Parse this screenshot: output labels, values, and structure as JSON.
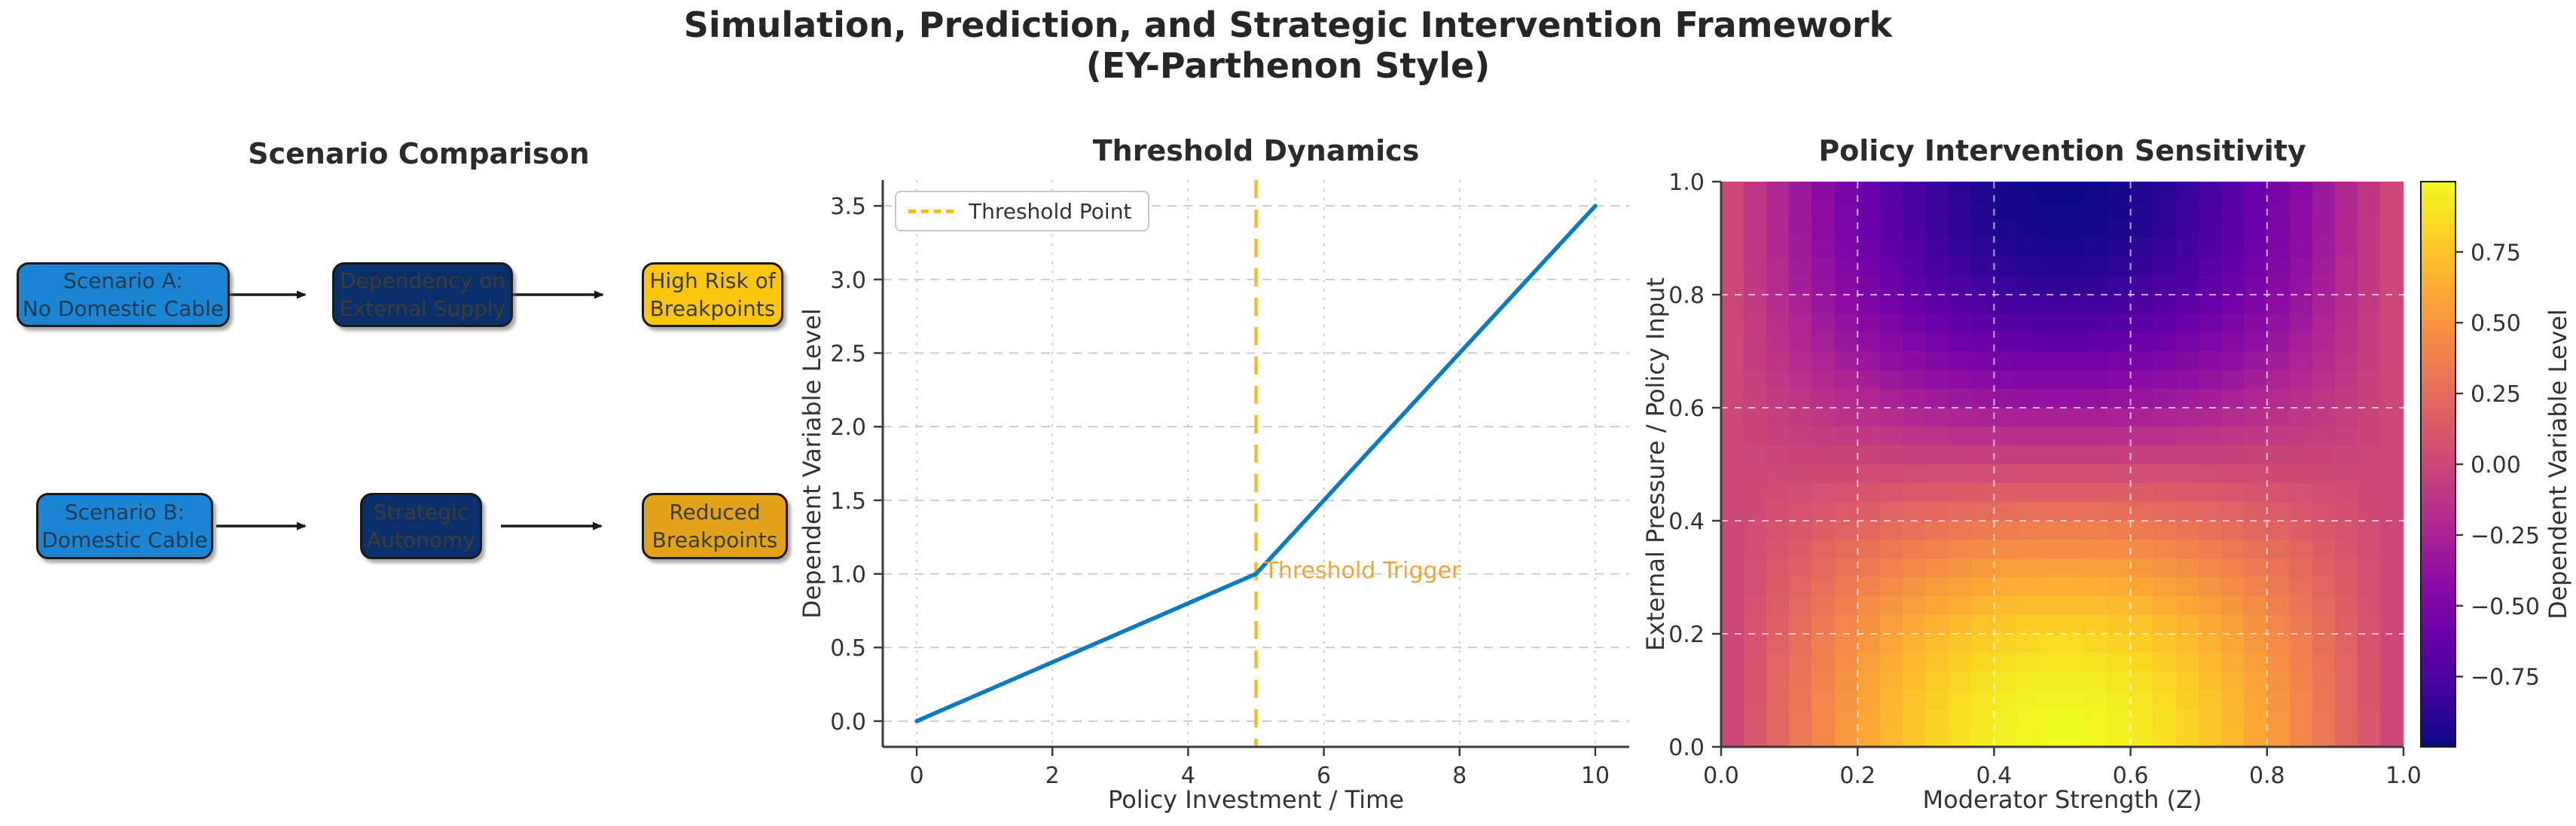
{
  "figure": {
    "title_line1": "Simulation, Prediction, and Strategic Intervention Framework",
    "title_line2": "(EY-Parthenon Style)"
  },
  "colors": {
    "scenario_blue": "#1b85d3",
    "navy": "#0a2f6b",
    "gold_bright": "#fcc60e",
    "gold_dark": "#e2a219",
    "line_blue": "#0d7bc1",
    "threshold_gold": "#fcbd10",
    "annotation_orange": "#eda53e",
    "text_dark": "#333333",
    "grid_gray": "#cdcdcd",
    "spine_gray": "#3b3b3b",
    "arrow_black": "#1a1a1a"
  },
  "diagram": {
    "title": "Scenario Comparison",
    "boxes": [
      {
        "id": "scenario-a",
        "line1": "Scenario A:",
        "line2": "No Domestic Cable",
        "fill": "#1b85d3",
        "text_color": "#1e3a50"
      },
      {
        "id": "dependency-external-supply",
        "line1": "Dependency on",
        "line2": "External Supply",
        "fill": "#0a2f6b",
        "text_color": "#3c3c30"
      },
      {
        "id": "high-risk-breakpoints",
        "line1": "High Risk of",
        "line2": "Breakpoints",
        "fill": "#fcc60e",
        "text_color": "#3a3a3a"
      },
      {
        "id": "scenario-b",
        "line1": "Scenario B:",
        "line2": "Domestic Cable",
        "fill": "#1b85d3",
        "text_color": "#1e3a50"
      },
      {
        "id": "strategic-autonomy",
        "line1": "Strategic",
        "line2": "Autonomy",
        "fill": "#0a2f6b",
        "text_color": "#3c3c30"
      },
      {
        "id": "reduced-breakpoints",
        "line1": "Reduced",
        "line2": "Breakpoints",
        "fill": "#e2a219",
        "text_color": "#3a3a3a"
      }
    ]
  },
  "chart_data": [
    {
      "type": "line",
      "title": "Threshold Dynamics",
      "xlabel": "Policy Investment / Time",
      "ylabel": "Dependent Variable Level",
      "x": [
        0,
        1,
        2,
        3,
        4,
        5,
        6,
        7,
        8,
        9,
        10
      ],
      "y": [
        0.0,
        0.2,
        0.4,
        0.6,
        0.8,
        1.0,
        1.5,
        2.0,
        2.5,
        3.0,
        3.5
      ],
      "line_color": "#0d7bc1",
      "xticks": [
        0,
        2,
        4,
        6,
        8,
        10
      ],
      "yticks": [
        0.0,
        0.5,
        1.0,
        1.5,
        2.0,
        2.5,
        3.0,
        3.5
      ],
      "xlim": [
        -0.5,
        10.5
      ],
      "ylim": [
        -0.175,
        3.675
      ],
      "grid": true,
      "legend_position": "upper left",
      "threshold_line": {
        "x": 5,
        "color": "#fcbd10",
        "style": "dashed",
        "legend_label": "Threshold Point"
      },
      "annotation": {
        "text": "Threshold Trigger",
        "x": 5.1,
        "y": 1.02,
        "color": "#eda53e"
      }
    },
    {
      "type": "heatmap",
      "title": "Policy Intervention Sensitivity",
      "xlabel": "Moderator Strength (Z)",
      "ylabel": "External Pressure / Policy Input",
      "z_formula": "sin(pi*x) * cos(pi*y)",
      "grid_n": 30,
      "xlim": [
        0,
        1
      ],
      "ylim": [
        0,
        1
      ],
      "xticks": [
        0.0,
        0.2,
        0.4,
        0.6,
        0.8,
        1.0
      ],
      "yticks": [
        0.0,
        0.2,
        0.4,
        0.6,
        0.8,
        1.0
      ],
      "colormap": "plasma",
      "colormap_stops": [
        [
          0.0,
          "#0d0887"
        ],
        [
          0.1,
          "#41049d"
        ],
        [
          0.2,
          "#6a00a8"
        ],
        [
          0.3,
          "#8f0da4"
        ],
        [
          0.4,
          "#b12a90"
        ],
        [
          0.5,
          "#cc4778"
        ],
        [
          0.6,
          "#e16462"
        ],
        [
          0.7,
          "#f2844b"
        ],
        [
          0.8,
          "#fca636"
        ],
        [
          0.9,
          "#fcce25"
        ],
        [
          1.0,
          "#f0f921"
        ]
      ],
      "colorbar": {
        "label": "Dependent Variable Level",
        "ticks": [
          0.75,
          0.5,
          0.25,
          0.0,
          -0.25,
          -0.5,
          -0.75
        ]
      }
    }
  ]
}
